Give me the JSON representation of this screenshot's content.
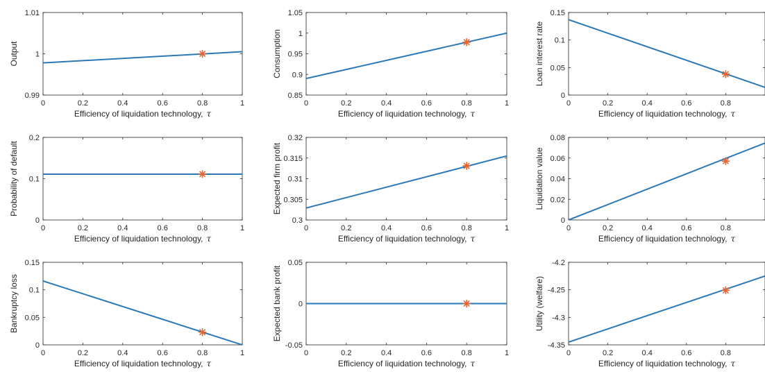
{
  "figure": {
    "marker_color": "#e8652d",
    "line_color": "#2a78b8"
  },
  "chart_data": [
    {
      "type": "line",
      "ylabel": "Output",
      "xlabel": "Efficiency of liquidation technology, τ",
      "xlabel_text": "Efficiency of liquidation technology,",
      "xlabel_symbol": "τ",
      "xlim": [
        0,
        1
      ],
      "ylim": [
        0.99,
        1.01
      ],
      "xticks": [
        "0",
        "0.2",
        "0.4",
        "0.6",
        "0.8",
        "1"
      ],
      "yticks": [
        "0.99",
        "1",
        "1.01"
      ],
      "series": [
        {
          "x": [
            0,
            1
          ],
          "y": [
            0.9978,
            1.0005
          ]
        }
      ],
      "marker": {
        "x": 0.8,
        "y": 1.0
      }
    },
    {
      "type": "line",
      "ylabel": "Consumption",
      "xlabel": "Efficiency of liquidation technology, τ",
      "xlabel_text": "Efficiency of liquidation technology,",
      "xlabel_symbol": "τ",
      "xlim": [
        0,
        1
      ],
      "ylim": [
        0.85,
        1.05
      ],
      "xticks": [
        "0",
        "0.2",
        "0.4",
        "0.6",
        "0.8",
        "1"
      ],
      "yticks": [
        "0.85",
        "0.9",
        "0.95",
        "1",
        "1.05"
      ],
      "series": [
        {
          "x": [
            0,
            1
          ],
          "y": [
            0.89,
            1.0
          ]
        }
      ],
      "marker": {
        "x": 0.8,
        "y": 0.978
      }
    },
    {
      "type": "line",
      "ylabel": "Loan interest rate",
      "xlabel": "Efficiency of liquidation technology, τ",
      "xlabel_text": "Efficiency of liquidation technology,",
      "xlabel_symbol": "τ",
      "xlim": [
        0,
        1
      ],
      "ylim": [
        0,
        0.15
      ],
      "xticks": [
        "0",
        "0.2",
        "0.4",
        "0.6",
        "0.8"
      ],
      "yticks": [
        "0",
        "0.05",
        "0.1",
        "0.15"
      ],
      "series": [
        {
          "x": [
            0,
            1
          ],
          "y": [
            0.137,
            0.014
          ]
        }
      ],
      "marker": {
        "x": 0.8,
        "y": 0.038
      }
    },
    {
      "type": "line",
      "ylabel": "Probability of default",
      "xlabel": "Efficiency of liquidation technology, τ",
      "xlabel_text": "Efficiency of liquidation technology,",
      "xlabel_symbol": "τ",
      "xlim": [
        0,
        1
      ],
      "ylim": [
        0,
        0.2
      ],
      "xticks": [
        "0",
        "0.2",
        "0.4",
        "0.6",
        "0.8",
        "1"
      ],
      "yticks": [
        "0",
        "0.1",
        "0.2"
      ],
      "series": [
        {
          "x": [
            0,
            1
          ],
          "y": [
            0.111,
            0.111
          ]
        }
      ],
      "marker": {
        "x": 0.8,
        "y": 0.111
      }
    },
    {
      "type": "line",
      "ylabel": "Expected firm profit",
      "xlabel": "Efficiency of liquidation technology, τ",
      "xlabel_text": "Efficiency of liquidation technology,",
      "xlabel_symbol": "τ",
      "xlim": [
        0,
        1
      ],
      "ylim": [
        0.3,
        0.32
      ],
      "xticks": [
        "0",
        "0.2",
        "0.4",
        "0.6",
        "0.8",
        "1"
      ],
      "yticks": [
        "0.3",
        "0.305",
        "0.31",
        "0.315",
        "0.32"
      ],
      "series": [
        {
          "x": [
            0,
            1
          ],
          "y": [
            0.3029,
            0.3155
          ]
        }
      ],
      "marker": {
        "x": 0.8,
        "y": 0.3131
      }
    },
    {
      "type": "line",
      "ylabel": "Liquidation value",
      "xlabel": "Efficiency of liquidation technology, τ",
      "xlabel_text": "Efficiency of liquidation technology,",
      "xlabel_symbol": "τ",
      "xlim": [
        0,
        1
      ],
      "ylim": [
        0,
        0.08
      ],
      "xticks": [
        "0",
        "0.2",
        "0.4",
        "0.6",
        "0.8"
      ],
      "yticks": [
        "0",
        "0.02",
        "0.04",
        "0.06",
        "0.08"
      ],
      "series": [
        {
          "x": [
            0,
            1
          ],
          "y": [
            0.0,
            0.0745
          ]
        }
      ],
      "marker": {
        "x": 0.8,
        "y": 0.057
      }
    },
    {
      "type": "line",
      "ylabel": "Bankruptcy loss",
      "xlabel": "Efficiency of liquidation technology, τ",
      "xlabel_text": "Efficiency of liquidation technology,",
      "xlabel_symbol": "τ",
      "xlim": [
        0,
        1
      ],
      "ylim": [
        0,
        0.15
      ],
      "xticks": [
        "0",
        "0.2",
        "0.4",
        "0.6",
        "0.8",
        "1"
      ],
      "yticks": [
        "0",
        "0.05",
        "0.1",
        "0.15"
      ],
      "series": [
        {
          "x": [
            0,
            1
          ],
          "y": [
            0.116,
            0.0
          ]
        }
      ],
      "marker": {
        "x": 0.8,
        "y": 0.023
      }
    },
    {
      "type": "line",
      "ylabel": "Expected bank profit",
      "xlabel": "Efficiency of liquidation technology, τ",
      "xlabel_text": "Efficiency of liquidation technology,",
      "xlabel_symbol": "τ",
      "xlim": [
        0,
        1
      ],
      "ylim": [
        -0.05,
        0.05
      ],
      "xticks": [
        "0",
        "0.2",
        "0.4",
        "0.6",
        "0.8",
        "1"
      ],
      "yticks": [
        "-0.05",
        "0",
        "0.05"
      ],
      "series": [
        {
          "x": [
            0,
            1
          ],
          "y": [
            0.0,
            0.0
          ]
        }
      ],
      "marker": {
        "x": 0.8,
        "y": 0.0
      }
    },
    {
      "type": "line",
      "ylabel": "Utility (welfare)",
      "xlabel": "Efficiency of liquidation technology, τ",
      "xlabel_text": "Efficiency of liquidation technology,",
      "xlabel_symbol": "τ",
      "xlim": [
        0,
        1
      ],
      "ylim": [
        -4.35,
        -4.2
      ],
      "xticks": [
        "0",
        "0.2",
        "0.4",
        "0.6",
        "0.8"
      ],
      "yticks": [
        "-4.35",
        "-4.3",
        "-4.25",
        "-4.2"
      ],
      "series": [
        {
          "x": [
            0,
            1
          ],
          "y": [
            -4.345,
            -4.225
          ]
        }
      ],
      "marker": {
        "x": 0.8,
        "y": -4.251
      }
    }
  ]
}
